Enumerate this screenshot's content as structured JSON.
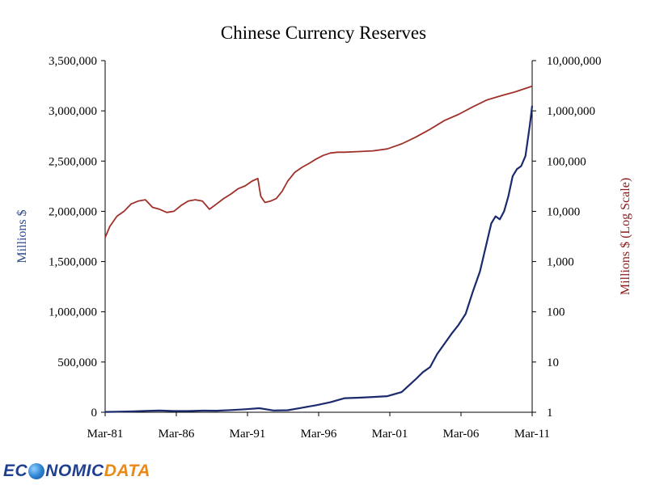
{
  "chart_data": {
    "type": "line",
    "title": "Chinese Currency Reserves",
    "xlabel": "",
    "ylabel_left": "Millions $",
    "ylabel_right": "Millions $ (Log Scale)",
    "x_ticks": [
      "Mar-81",
      "Mar-86",
      "Mar-91",
      "Mar-96",
      "Mar-01",
      "Mar-06",
      "Mar-11"
    ],
    "x_range": [
      1981.17,
      2011.17
    ],
    "y_left_ticks": [
      "0",
      "500,000",
      "1,000,000",
      "1,500,000",
      "2,000,000",
      "2,500,000",
      "3,000,000",
      "3,500,000"
    ],
    "y_left_range": [
      0,
      3500000
    ],
    "y_right_ticks": [
      "1",
      "10",
      "100",
      "1,000",
      "10,000",
      "100,000",
      "1,000,000",
      "10,000,000"
    ],
    "y_right_range": [
      1,
      10000000
    ],
    "y_right_scale": "log",
    "grid": false,
    "legend": "none",
    "series": [
      {
        "axis": "left",
        "color": "#1a2a6c",
        "x": [
          1981.17,
          1982.0,
          1983.0,
          1984.0,
          1985.0,
          1986.0,
          1987.0,
          1988.0,
          1989.0,
          1990.0,
          1991.0,
          1992.0,
          1993.0,
          1994.0,
          1995.0,
          1996.0,
          1997.0,
          1998.0,
          1999.0,
          2000.0,
          2001.0,
          2002.0,
          2003.0,
          2003.5,
          2004.0,
          2004.5,
          2005.0,
          2005.5,
          2006.0,
          2006.5,
          2007.0,
          2007.5,
          2008.0,
          2008.3,
          2008.6,
          2008.9,
          2009.2,
          2009.5,
          2009.8,
          2010.1,
          2010.4,
          2010.7,
          2011.0,
          2011.17
        ],
        "y": [
          3000,
          5000,
          8000,
          14000,
          17000,
          12000,
          12000,
          16000,
          15000,
          22000,
          30000,
          40000,
          18000,
          20000,
          45000,
          70000,
          100000,
          140000,
          145000,
          152000,
          160000,
          200000,
          330000,
          400000,
          450000,
          580000,
          680000,
          780000,
          870000,
          980000,
          1200000,
          1400000,
          1700000,
          1880000,
          1950000,
          1920000,
          2000000,
          2150000,
          2350000,
          2420000,
          2450000,
          2550000,
          2850000,
          3050000
        ]
      },
      {
        "axis": "right",
        "color": "#a0302a",
        "x": [
          1981.17,
          1981.5,
          1982.0,
          1982.5,
          1983.0,
          1983.5,
          1984.0,
          1984.5,
          1985.0,
          1985.5,
          1986.0,
          1986.5,
          1987.0,
          1987.5,
          1988.0,
          1988.5,
          1989.0,
          1989.5,
          1990.0,
          1990.5,
          1991.0,
          1991.5,
          1991.9,
          1992.1,
          1992.4,
          1992.8,
          1993.2,
          1993.6,
          1994.0,
          1994.5,
          1995.0,
          1995.5,
          1996.0,
          1996.5,
          1997.0,
          1997.5,
          1998.0,
          1999.0,
          2000.0,
          2001.0,
          2002.0,
          2003.0,
          2004.0,
          2005.0,
          2006.0,
          2007.0,
          2008.0,
          2009.0,
          2010.0,
          2011.17
        ],
        "y": [
          3000,
          5000,
          8000,
          10000,
          14000,
          16000,
          17000,
          12000,
          11000,
          9500,
          10000,
          13000,
          16000,
          17000,
          16000,
          11000,
          14000,
          18000,
          22000,
          28000,
          32000,
          40000,
          45000,
          20000,
          15000,
          16000,
          18000,
          25000,
          40000,
          60000,
          75000,
          90000,
          110000,
          130000,
          145000,
          150000,
          150000,
          155000,
          160000,
          175000,
          220000,
          300000,
          430000,
          640000,
          850000,
          1200000,
          1650000,
          2000000,
          2400000,
          3100000
        ]
      }
    ]
  },
  "logo": {
    "part1": "EC",
    "part2": "NOMIC",
    "part3": "DATA"
  }
}
